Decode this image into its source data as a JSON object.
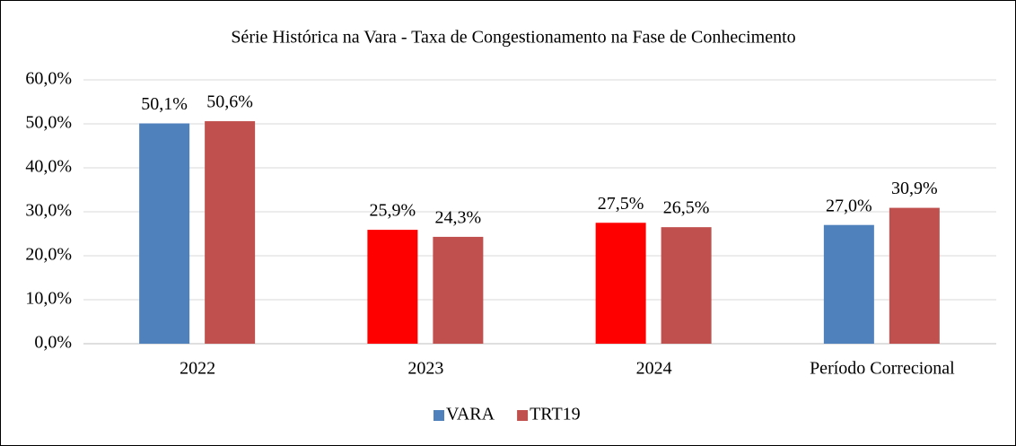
{
  "chart_data": {
    "type": "bar",
    "title": "Série Histórica na Vara - Taxa de Congestionamento na Fase de Conhecimento",
    "categories": [
      "2022",
      "2023",
      "2024",
      "Período Correcional"
    ],
    "series": [
      {
        "name": "VARA",
        "color": "#4f81bd",
        "colors": [
          "#4f81bd",
          "#ff0000",
          "#ff0000",
          "#4f81bd"
        ],
        "values": [
          50.1,
          25.9,
          27.5,
          27.0
        ],
        "value_labels": [
          "50,1%",
          "25,9%",
          "27,5%",
          "27,0%"
        ]
      },
      {
        "name": "TRT19",
        "color": "#c0504d",
        "values": [
          50.6,
          24.3,
          26.5,
          30.9
        ],
        "value_labels": [
          "50,6%",
          "24,3%",
          "26,5%",
          "30,9%"
        ]
      }
    ],
    "ylim": [
      0,
      60
    ],
    "yticks": [
      {
        "value": 0,
        "label": "0,0%"
      },
      {
        "value": 10,
        "label": "10,0%"
      },
      {
        "value": 20,
        "label": "20,0%"
      },
      {
        "value": 30,
        "label": "30,0%"
      },
      {
        "value": 40,
        "label": "40,0%"
      },
      {
        "value": 50,
        "label": "50,0%"
      },
      {
        "value": 60,
        "label": "60,0%"
      }
    ],
    "grid": true,
    "legend": "bottom"
  }
}
